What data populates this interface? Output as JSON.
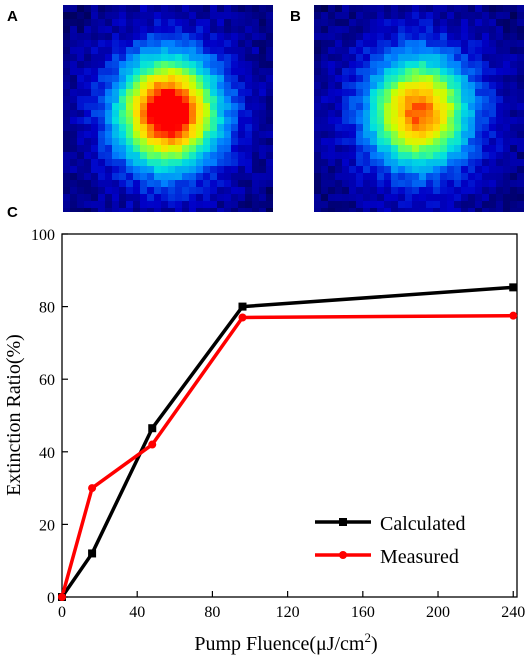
{
  "panels": {
    "a_label": "A",
    "b_label": "B",
    "c_label": "C"
  },
  "heatmaps": {
    "colormap": [
      "#000050",
      "#0000c8",
      "#0080ff",
      "#00e0e0",
      "#40ff80",
      "#c8ff00",
      "#ffe000",
      "#ff8000",
      "#ff0000"
    ],
    "background_color": "#00004a",
    "a_peak_level": 1.0,
    "b_peak_level": 0.75
  },
  "chart_data": {
    "type": "line",
    "xlabel_main": "Pump Fluence(μJ/cm",
    "xlabel_sup": "2",
    "xlabel_tail": ")",
    "ylabel": "Extinction Ratio(%)",
    "x_ticks": [
      0,
      40,
      80,
      120,
      160,
      200,
      240
    ],
    "y_ticks": [
      0,
      20,
      40,
      60,
      80,
      100
    ],
    "xlim": [
      0,
      242
    ],
    "ylim": [
      0,
      100
    ],
    "grid": false,
    "legend_position": "bottom-right",
    "series": [
      {
        "name": "Calculated",
        "color": "#000000",
        "marker": "square",
        "x": [
          0,
          16,
          48,
          96,
          240
        ],
        "y": [
          0,
          12,
          46.5,
          80,
          85.3
        ]
      },
      {
        "name": "Measured",
        "color": "#ff0000",
        "marker": "circle",
        "x": [
          0,
          16,
          48,
          96,
          240
        ],
        "y": [
          0,
          30,
          42,
          77,
          77.5
        ]
      }
    ]
  }
}
